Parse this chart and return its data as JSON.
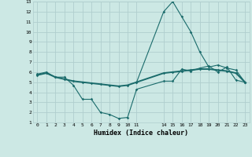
{
  "xlabel": "Humidex (Indice chaleur)",
  "xlim": [
    -0.5,
    23.5
  ],
  "ylim": [
    1,
    13
  ],
  "xtick_positions": [
    0,
    1,
    2,
    3,
    4,
    5,
    6,
    7,
    8,
    9,
    10,
    11,
    14,
    15,
    16,
    17,
    18,
    19,
    20,
    21,
    22,
    23
  ],
  "xtick_labels": [
    "0",
    "1",
    "2",
    "3",
    "4",
    "5",
    "6",
    "7",
    "8",
    "9",
    "10",
    "11",
    "14",
    "15",
    "16",
    "17",
    "18",
    "19",
    "20",
    "21",
    "22",
    "23"
  ],
  "yticks": [
    1,
    2,
    3,
    4,
    5,
    6,
    7,
    8,
    9,
    10,
    11,
    12,
    13
  ],
  "background_color": "#cce8e4",
  "grid_color": "#b0cece",
  "line_color": "#1a6b6b",
  "line1_x": [
    0,
    1,
    2,
    3,
    4,
    5,
    6,
    7,
    8,
    9,
    10,
    11,
    14,
    15,
    16,
    17,
    18,
    19,
    20,
    21,
    22,
    23
  ],
  "line1_y": [
    5.8,
    6.0,
    5.5,
    5.5,
    4.7,
    3.3,
    3.3,
    2.0,
    1.8,
    1.4,
    1.5,
    4.3,
    5.1,
    5.1,
    6.3,
    6.1,
    6.4,
    6.6,
    6.0,
    6.5,
    5.2,
    5.0
  ],
  "line2_x": [
    0,
    1,
    2,
    3,
    4,
    5,
    6,
    7,
    8,
    9,
    10,
    11,
    14,
    15,
    16,
    17,
    18,
    19,
    20,
    21,
    22,
    23
  ],
  "line2_y": [
    5.7,
    5.9,
    5.5,
    5.3,
    5.1,
    5.0,
    4.9,
    4.8,
    4.7,
    4.6,
    4.7,
    5.0,
    5.9,
    6.0,
    6.1,
    6.2,
    6.3,
    6.3,
    6.2,
    6.1,
    5.9,
    5.0
  ],
  "line3_x": [
    11,
    14,
    15,
    16,
    17,
    18,
    19,
    20,
    21,
    22,
    23
  ],
  "line3_y": [
    5.0,
    12.0,
    13.0,
    11.5,
    10.0,
    8.0,
    6.5,
    6.7,
    6.4,
    6.2,
    5.0
  ]
}
